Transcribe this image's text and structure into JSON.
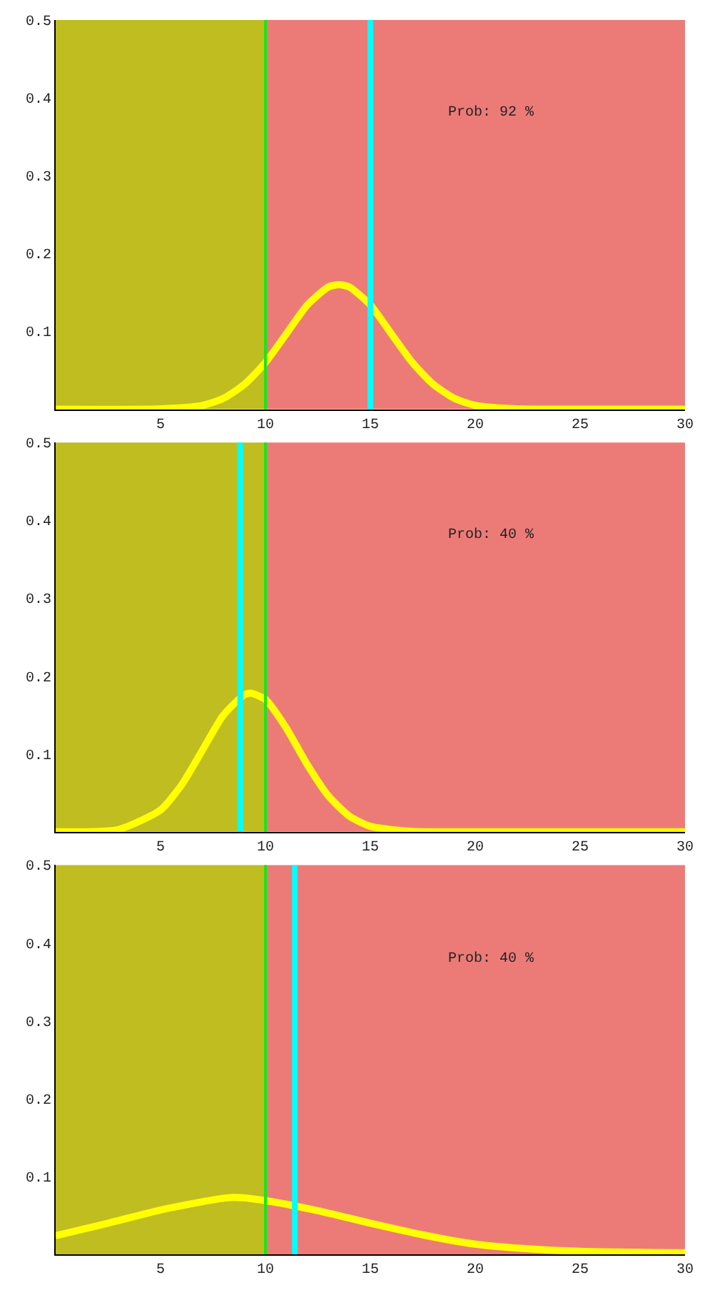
{
  "chart_data": [
    {
      "type": "line",
      "xlim": [
        0,
        30
      ],
      "ylim": [
        0,
        0.5
      ],
      "xticks": [
        5,
        10,
        15,
        20,
        25,
        30
      ],
      "yticks": [
        0.1,
        0.2,
        0.3,
        0.4,
        0.5
      ],
      "series": [
        {
          "color": "#ffff00",
          "x": [
            0,
            5,
            7,
            8,
            9,
            10,
            11,
            12,
            13,
            13.5,
            14,
            15,
            16,
            17,
            18,
            19,
            20,
            22,
            25,
            30
          ],
          "values": [
            0,
            0.0005,
            0.005,
            0.014,
            0.032,
            0.06,
            0.097,
            0.134,
            0.157,
            0.16,
            0.157,
            0.134,
            0.097,
            0.06,
            0.032,
            0.014,
            0.005,
            0.0005,
            0,
            0
          ]
        }
      ],
      "bands": [
        {
          "axis": "x",
          "from": 0,
          "to": 10,
          "color": "#bfbd1f"
        },
        {
          "axis": "x",
          "from": 10,
          "to": 30,
          "color": "#ec7b78"
        }
      ],
      "ref_lines": [
        {
          "axis": "x",
          "value": 10,
          "color": "#19e619"
        },
        {
          "axis": "x",
          "value": 15,
          "color": "#00ffff"
        }
      ],
      "annotations": [
        "Prob: 92 %"
      ]
    },
    {
      "type": "line",
      "xlim": [
        0,
        30
      ],
      "ylim": [
        0,
        0.5
      ],
      "xticks": [
        5,
        10,
        15,
        20,
        25,
        30
      ],
      "yticks": [
        0.1,
        0.2,
        0.3,
        0.4,
        0.5
      ],
      "series": [
        {
          "color": "#ffff00",
          "x": [
            0,
            3,
            5,
            6,
            7,
            8,
            9,
            9.3,
            10,
            11,
            12,
            13,
            14,
            15,
            17,
            20,
            30
          ],
          "values": [
            0,
            0.003,
            0.028,
            0.06,
            0.105,
            0.15,
            0.176,
            0.178,
            0.17,
            0.133,
            0.086,
            0.046,
            0.02,
            0.007,
            0.0005,
            0,
            0
          ]
        }
      ],
      "bands": [
        {
          "axis": "x",
          "from": 0,
          "to": 10,
          "color": "#bfbd1f"
        },
        {
          "axis": "x",
          "from": 10,
          "to": 30,
          "color": "#ec7b78"
        }
      ],
      "ref_lines": [
        {
          "axis": "x",
          "value": 10,
          "color": "#19e619"
        },
        {
          "axis": "x",
          "value": 8.8,
          "color": "#00ffff"
        }
      ],
      "annotations": [
        "Prob: 40 %"
      ]
    },
    {
      "type": "line",
      "xlim": [
        0,
        30
      ],
      "ylim": [
        0,
        0.5
      ],
      "xticks": [
        5,
        10,
        15,
        20,
        25,
        30
      ],
      "yticks": [
        0.1,
        0.2,
        0.3,
        0.4,
        0.5
      ],
      "series": [
        {
          "color": "#ffff00",
          "x": [
            0,
            2.5,
            5,
            7.5,
            8.5,
            10,
            12.5,
            15,
            17.5,
            20,
            22.5,
            25,
            30
          ],
          "values": [
            0.024,
            0.04,
            0.057,
            0.07,
            0.073,
            0.069,
            0.056,
            0.04,
            0.025,
            0.013,
            0.007,
            0.004,
            0.002
          ]
        }
      ],
      "bands": [
        {
          "axis": "x",
          "from": 0,
          "to": 10,
          "color": "#bfbd1f"
        },
        {
          "axis": "x",
          "from": 10,
          "to": 30,
          "color": "#ec7b78"
        }
      ],
      "ref_lines": [
        {
          "axis": "x",
          "value": 10,
          "color": "#19e619"
        },
        {
          "axis": "x",
          "value": 11.4,
          "color": "#00ffff"
        }
      ],
      "annotations": [
        "Prob: 40 %"
      ]
    }
  ]
}
